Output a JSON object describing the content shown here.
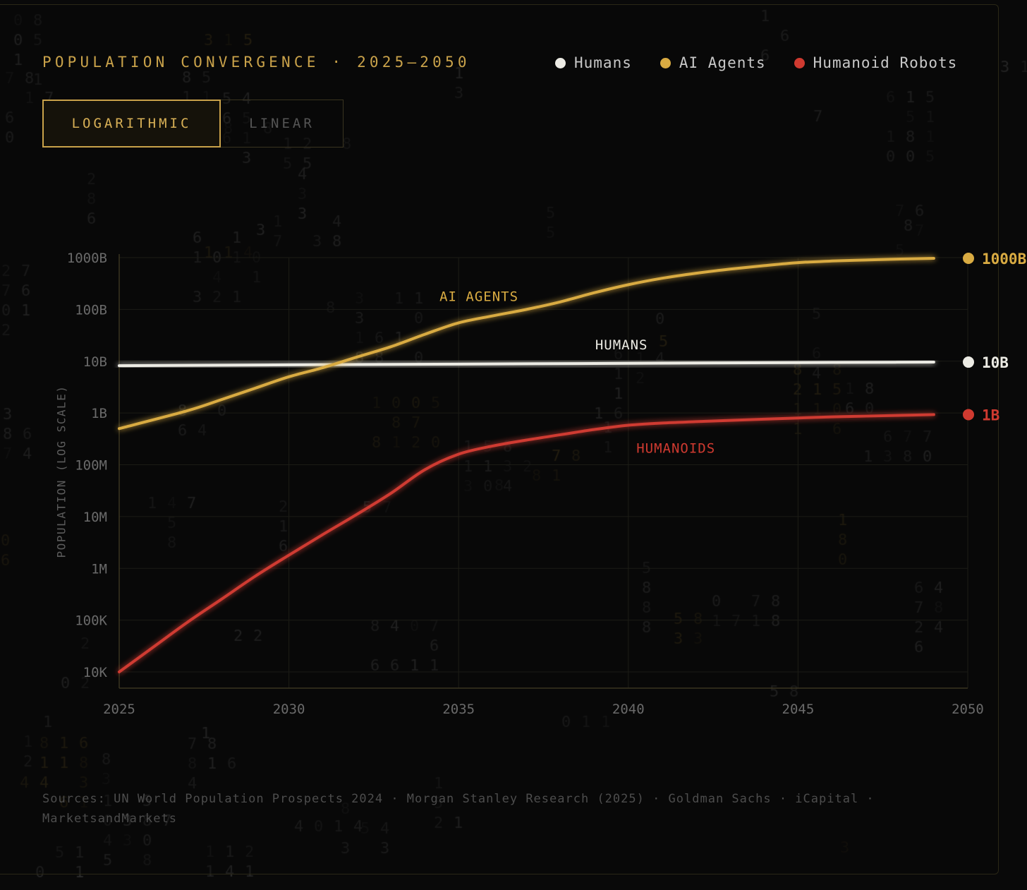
{
  "title": "POPULATION CONVERGENCE · 2025–2050",
  "legend": [
    {
      "label": "Humans",
      "color": "#ecebe4"
    },
    {
      "label": "AI Agents",
      "color": "#d9ab42"
    },
    {
      "label": "Humanoid Robots",
      "color": "#cf3a30"
    }
  ],
  "toggle": {
    "active": "LOGARITHMIC",
    "inactive": "LINEAR"
  },
  "sources": "Sources: UN World Population Prospects 2024 · Morgan Stanley Research (2025) · Goldman Sachs · iCapital · MarketsandMarkets",
  "chart_data": {
    "type": "line",
    "yscale": "log",
    "ylabel": "POPULATION (LOG SCALE)",
    "xlim": [
      2025,
      2050
    ],
    "ylim": [
      10000,
      1000000000000
    ],
    "xticks": [
      "2025",
      "2030",
      "2035",
      "2040",
      "2045",
      "2050"
    ],
    "yticks": [
      "1000B",
      "100B",
      "10B",
      "1B",
      "100M",
      "10M",
      "1M",
      "100K",
      "10K"
    ],
    "grid": true,
    "series": [
      {
        "name": "HUMANS",
        "color": "#ecebe4",
        "end_label": "10B",
        "x": [
          2025,
          2030,
          2035,
          2040,
          2045,
          2049
        ],
        "values": [
          8200000000,
          8500000000,
          8800000000,
          9100000000,
          9400000000,
          9600000000
        ]
      },
      {
        "name": "AI AGENTS",
        "color": "#d9ab42",
        "end_label": "1000B",
        "x": [
          2025,
          2027,
          2028,
          2029,
          2030,
          2031,
          2032,
          2033,
          2034,
          2035,
          2036,
          2037,
          2038,
          2039,
          2040,
          2041,
          2042,
          2043,
          2044,
          2045,
          2046,
          2047,
          2048,
          2049
        ],
        "values": [
          500000000,
          1100000000,
          1800000000,
          3000000000,
          5000000000,
          7500000000,
          12000000000,
          19000000000,
          33000000000,
          55000000000,
          75000000000,
          100000000000,
          140000000000,
          210000000000,
          300000000000,
          400000000000,
          500000000000,
          600000000000,
          700000000000,
          800000000000,
          860000000000,
          900000000000,
          940000000000,
          970000000000
        ]
      },
      {
        "name": "HUMANOIDS",
        "color": "#cf3a30",
        "end_label": "1B",
        "x": [
          2025,
          2026,
          2027,
          2028,
          2029,
          2030,
          2031,
          2032,
          2033,
          2034,
          2035,
          2036,
          2037,
          2038,
          2039,
          2040,
          2041,
          2042,
          2043,
          2044,
          2045,
          2046,
          2047,
          2048,
          2049
        ],
        "values": [
          10000,
          30000,
          90000,
          250000,
          700000,
          1800000,
          4500000,
          11000000,
          28000000,
          80000000,
          160000000,
          230000000,
          300000000,
          380000000,
          480000000,
          580000000,
          640000000,
          680000000,
          720000000,
          760000000,
          800000000,
          840000000,
          870000000,
          900000000,
          930000000
        ]
      }
    ]
  }
}
